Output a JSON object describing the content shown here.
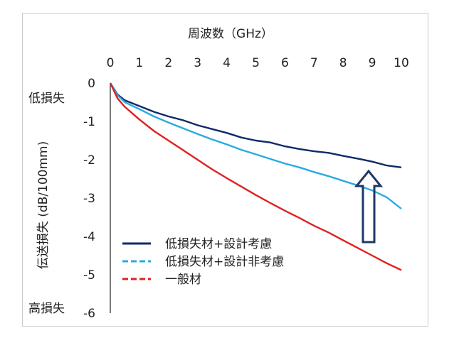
{
  "chart_data": {
    "type": "line",
    "title": "周波数（GHz）",
    "xlabel": "周波数（GHz）",
    "ylabel": "伝送損失 (dB/100mm)",
    "xlim": [
      0,
      10
    ],
    "ylim": [
      -6,
      0
    ],
    "x_ticks": [
      "0",
      "1",
      "2",
      "3",
      "4",
      "5",
      "6",
      "7",
      "8",
      "9",
      "10"
    ],
    "y_ticks": [
      "0",
      "-1",
      "-2",
      "-3",
      "-4",
      "-5",
      "-6"
    ],
    "x_axis_position": "top",
    "grid": false,
    "legend_position": "bottom-left",
    "annotations": {
      "low_loss_label": "低損失",
      "high_loss_label": "高損失"
    },
    "series": [
      {
        "name": "低損失材+設計考慮",
        "color": "#0d2a6b",
        "style": "solid",
        "x": [
          0,
          0.25,
          0.5,
          1,
          1.5,
          2,
          2.5,
          3,
          3.5,
          4,
          4.5,
          5,
          5.5,
          6,
          6.5,
          7,
          7.5,
          8,
          8.5,
          9,
          9.5,
          10
        ],
        "y": [
          0,
          -0.3,
          -0.45,
          -0.6,
          -0.75,
          -0.87,
          -0.97,
          -1.1,
          -1.2,
          -1.3,
          -1.42,
          -1.5,
          -1.55,
          -1.65,
          -1.72,
          -1.78,
          -1.82,
          -1.9,
          -1.97,
          -2.05,
          -2.15,
          -2.2
        ]
      },
      {
        "name": "低損失材+設計非考慮",
        "color": "#29abe2",
        "style": "dashed",
        "x": [
          0,
          0.25,
          0.5,
          1,
          1.5,
          2,
          2.5,
          3,
          3.5,
          4,
          4.5,
          5,
          5.5,
          6,
          6.5,
          7,
          7.5,
          8,
          8.5,
          9,
          9.5,
          10
        ],
        "y": [
          0,
          -0.32,
          -0.5,
          -0.68,
          -0.87,
          -1.03,
          -1.18,
          -1.33,
          -1.47,
          -1.6,
          -1.74,
          -1.86,
          -1.98,
          -2.1,
          -2.2,
          -2.32,
          -2.43,
          -2.55,
          -2.67,
          -2.8,
          -2.98,
          -3.28
        ]
      },
      {
        "name": "一般材",
        "color": "#e02020",
        "style": "dashed",
        "x": [
          0,
          0.25,
          0.5,
          1,
          1.5,
          2,
          2.5,
          3,
          3.5,
          4,
          4.5,
          5,
          5.5,
          6,
          6.5,
          7,
          7.5,
          8,
          8.5,
          9,
          9.5,
          10
        ],
        "y": [
          0,
          -0.4,
          -0.62,
          -0.95,
          -1.25,
          -1.5,
          -1.75,
          -2.0,
          -2.25,
          -2.48,
          -2.7,
          -2.92,
          -3.13,
          -3.33,
          -3.52,
          -3.72,
          -3.9,
          -4.1,
          -4.3,
          -4.5,
          -4.7,
          -4.88
        ]
      }
    ]
  }
}
